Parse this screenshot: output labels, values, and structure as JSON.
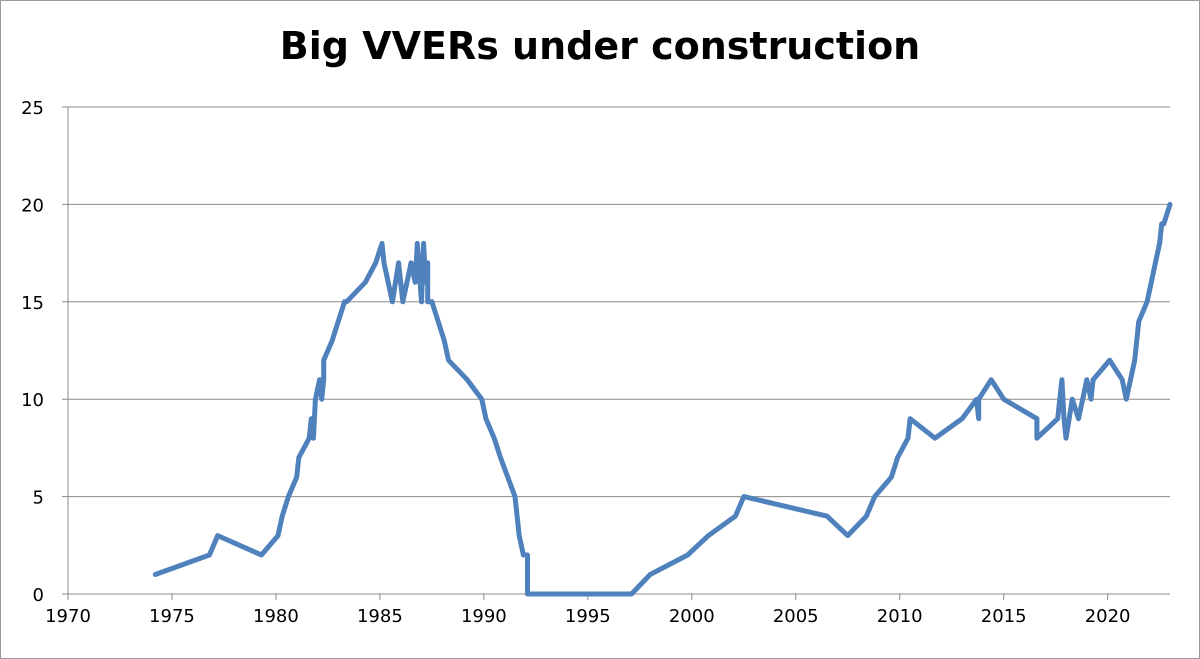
{
  "chart_data": {
    "type": "line",
    "title": "Big VVERs under construction",
    "xlabel": "",
    "ylabel": "",
    "xlim": [
      1970,
      2023
    ],
    "ylim": [
      0,
      25
    ],
    "x_ticks": [
      "1970",
      "1975",
      "1980",
      "1985",
      "1990",
      "1995",
      "2000",
      "2005",
      "2010",
      "2015",
      "2020"
    ],
    "y_ticks": [
      "0",
      "5",
      "10",
      "15",
      "20",
      "25"
    ],
    "grid": "horizontal",
    "legend": "none",
    "series": [
      {
        "color": "#4f81bd",
        "x": [
          1974.2,
          1976.8,
          1977.2,
          1979.3,
          1980.1,
          1980.3,
          1980.6,
          1981.0,
          1981.1,
          1981.6,
          1981.7,
          1981.8,
          1981.9,
          1982.1,
          1982.2,
          1982.3,
          1982.3,
          1982.7,
          1983.0,
          1983.3,
          1983.4,
          1984.3,
          1984.8,
          1985.1,
          1985.2,
          1985.6,
          1985.9,
          1986.1,
          1986.5,
          1986.7,
          1986.8,
          1987.0,
          1987.1,
          1987.2,
          1987.3,
          1987.3,
          1987.5,
          1987.8,
          1988.1,
          1988.3,
          1989.2,
          1989.9,
          1990.1,
          1990.5,
          1990.8,
          1991.5,
          1991.6,
          1991.7,
          1991.9,
          1992.1,
          1992.1,
          1997.1,
          1998.0,
          1999.8,
          2000.8,
          2002.1,
          2002.5,
          2006.5,
          2007.5,
          2008.4,
          2008.8,
          2009.6,
          2009.9,
          2010.4,
          2010.5,
          2011.7,
          2013.0,
          2013.7,
          2013.8,
          2013.8,
          2014.4,
          2015.0,
          2016.6,
          2016.6,
          2017.6,
          2017.8,
          2017.9,
          2018.0,
          2018.3,
          2018.6,
          2018.8,
          2019.0,
          2019.2,
          2019.3,
          2020.1,
          2020.7,
          2020.9,
          2021.1,
          2021.3,
          2021.5,
          2021.9,
          2022.3,
          2022.5,
          2022.6,
          2022.7,
          2023.0
        ],
        "values": [
          1,
          2,
          3,
          2,
          3,
          4,
          5,
          6,
          7,
          8,
          9,
          8,
          10,
          11,
          10,
          11,
          12,
          13,
          14,
          15,
          15,
          16,
          17,
          18,
          17,
          15,
          17,
          15,
          17,
          16,
          18,
          15,
          18,
          16,
          17,
          15,
          15,
          14,
          13,
          12,
          11,
          10,
          9,
          8,
          7,
          5,
          4,
          3,
          2,
          2,
          0,
          0,
          1,
          2,
          3,
          4,
          5,
          4,
          3,
          4,
          5,
          6,
          7,
          8,
          9,
          8,
          9,
          10,
          9,
          10,
          11,
          10,
          9,
          8,
          9,
          11,
          9,
          8,
          10,
          9,
          10,
          11,
          10,
          11,
          12,
          11,
          10,
          11,
          12,
          14,
          15,
          17,
          18,
          19,
          19,
          20
        ]
      }
    ]
  }
}
